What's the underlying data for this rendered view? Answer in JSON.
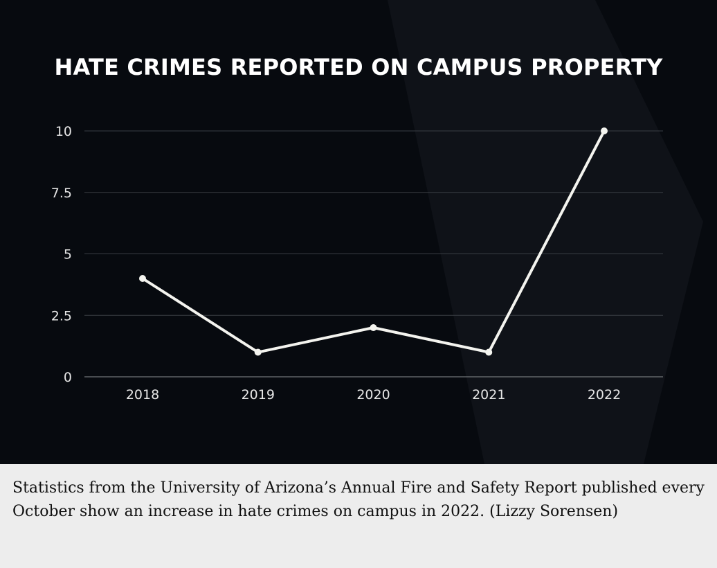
{
  "chart_data": {
    "type": "line",
    "title": "HATE CRIMES REPORTED ON CAMPUS PROPERTY",
    "categories": [
      "2018",
      "2019",
      "2020",
      "2021",
      "2022"
    ],
    "series": [
      {
        "values": [
          4,
          1,
          2,
          1,
          10
        ]
      }
    ],
    "yticks": [
      0,
      2.5,
      5,
      7.5,
      10
    ],
    "ytick_labels": [
      "0",
      "2.5",
      "5",
      "7.5",
      "10"
    ],
    "ylim": [
      0,
      10
    ],
    "grid": true,
    "colors": {
      "background": "#070a0f",
      "line": "#f4f4ef",
      "grid": "#3a3e44",
      "text": "#e6e6e6"
    }
  },
  "caption": {
    "text": "Statistics from the University of Arizona’s Annual Fire and Safety Report published every October show an increase in hate crimes on campus in 2022. (Lizzy Sorensen)"
  }
}
